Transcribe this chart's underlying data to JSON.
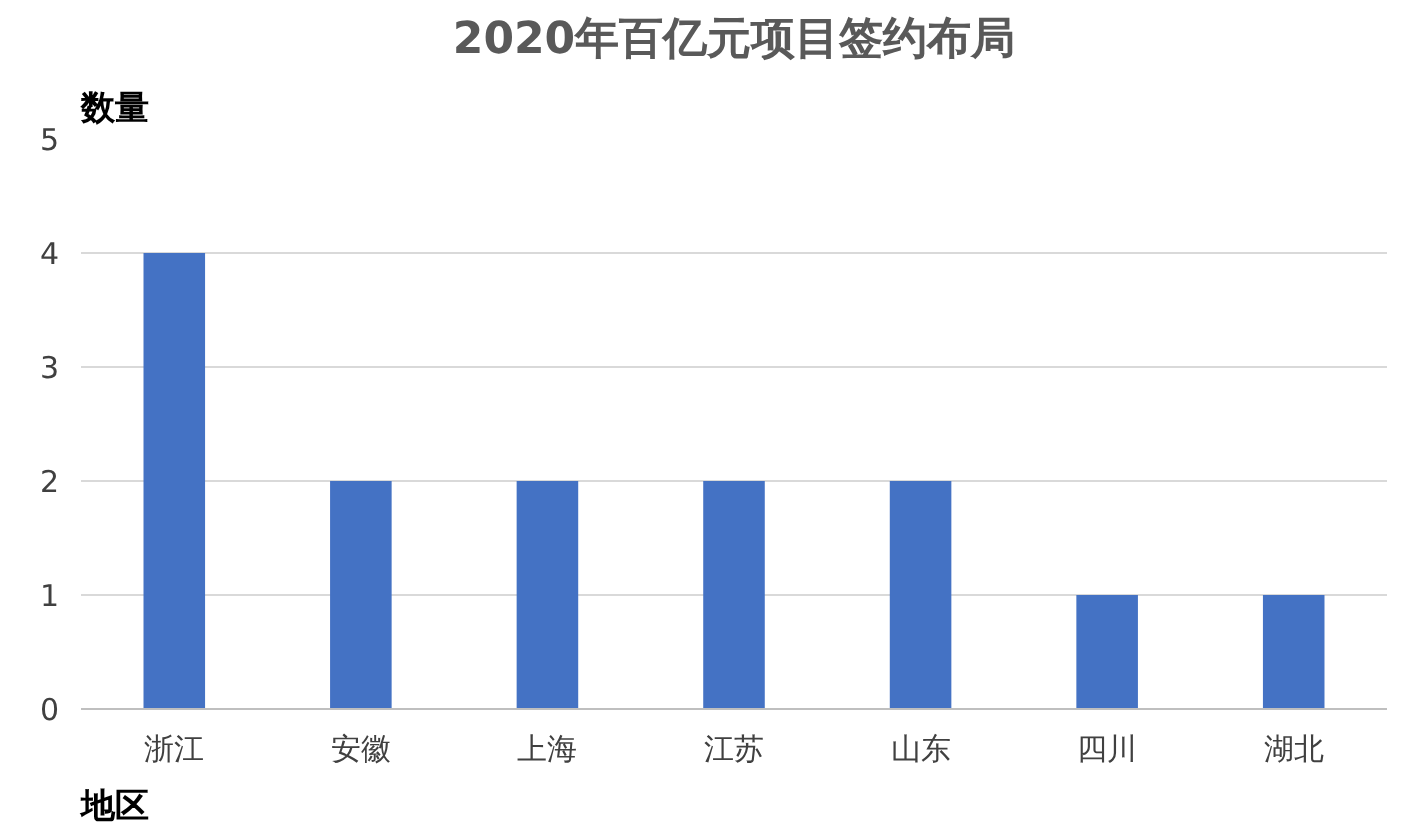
{
  "chart_data": {
    "type": "bar",
    "title": "2020年百亿元项目签约布局",
    "xlabel": "地区",
    "ylabel": "数量",
    "categories": [
      "浙江",
      "安徽",
      "上海",
      "江苏",
      "山东",
      "四川",
      "湖北"
    ],
    "values": [
      4,
      2,
      2,
      2,
      2,
      1,
      1
    ],
    "color": "#4472c4",
    "ylim": [
      0,
      5
    ],
    "yticks": [
      0,
      1,
      2,
      3,
      4,
      5
    ],
    "grid": "y"
  }
}
